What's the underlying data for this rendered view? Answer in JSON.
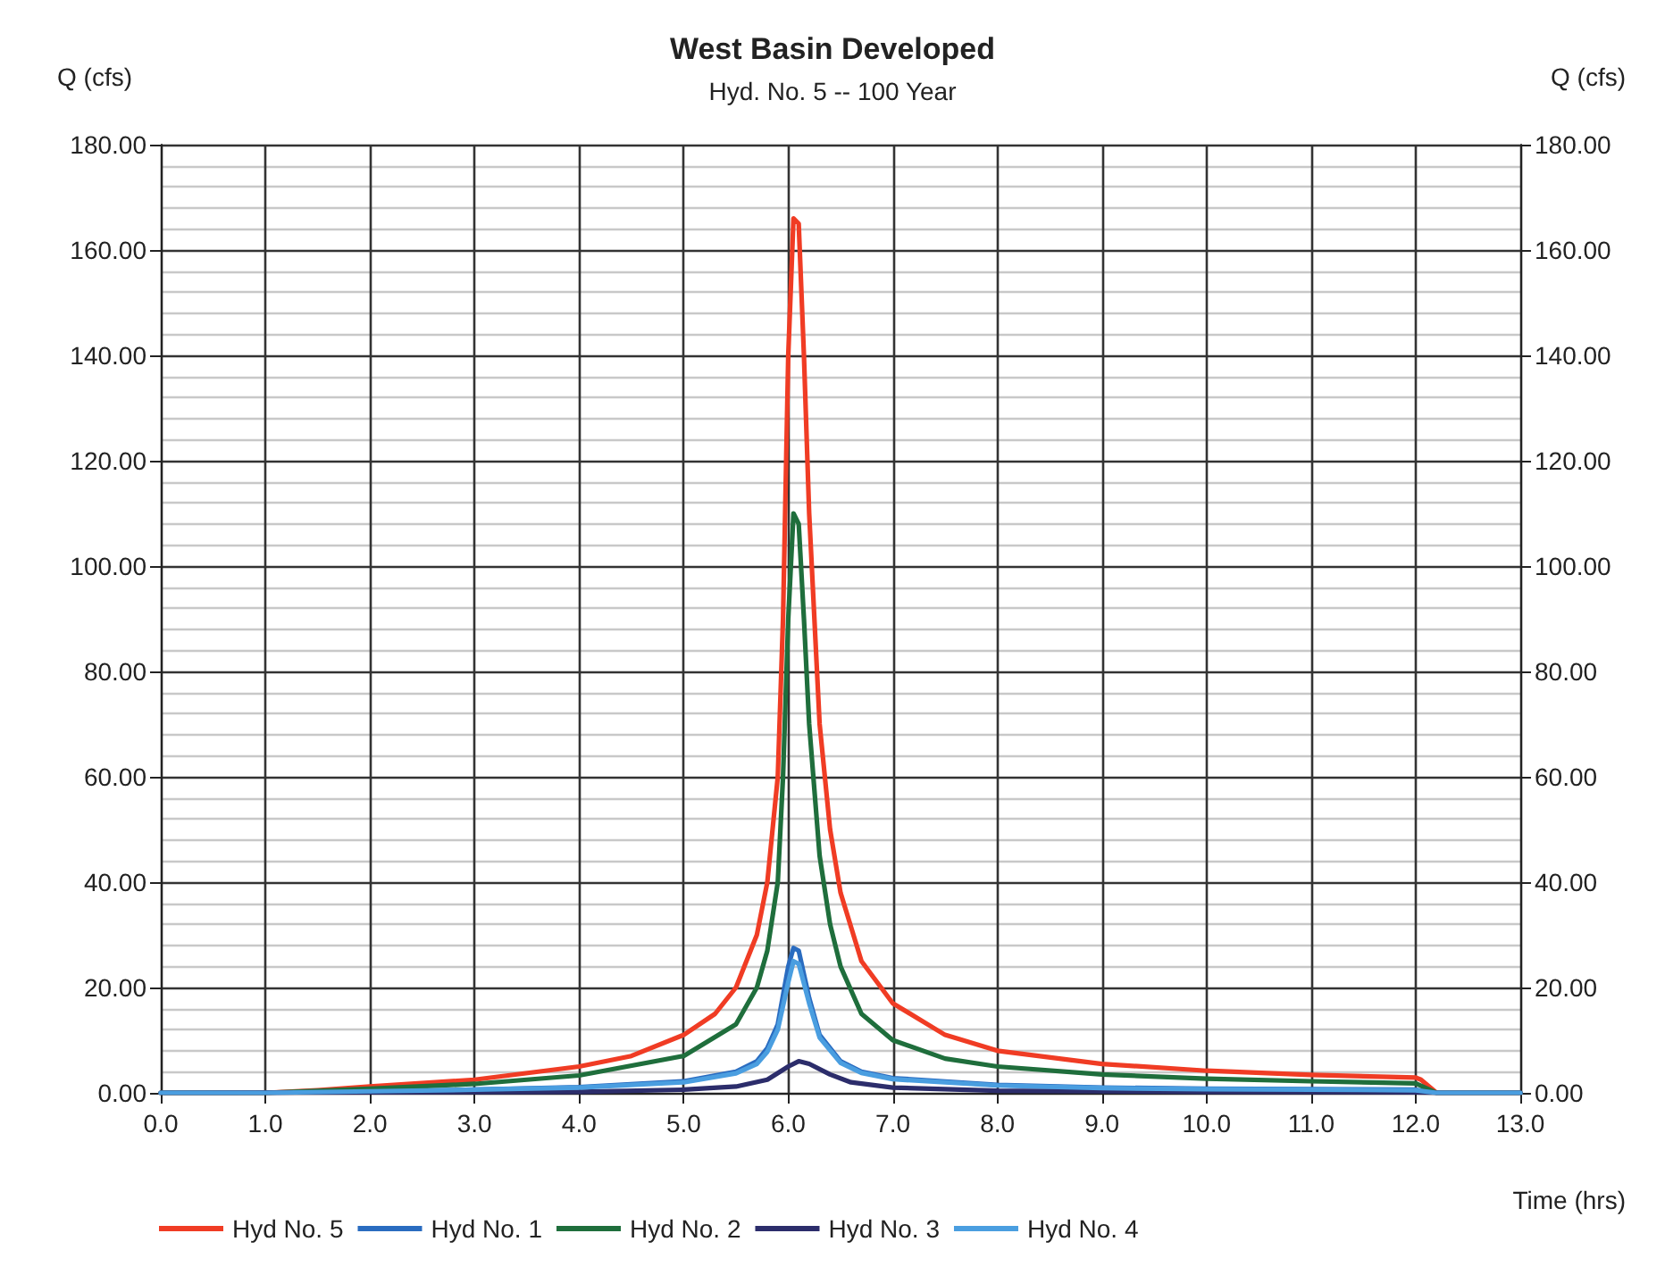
{
  "chart_data": {
    "type": "line",
    "title": "West Basin Developed",
    "subtitle": "Hyd. No. 5 -- 100 Year",
    "xlabel": "Time (hrs)",
    "ylabel": "Q (cfs)",
    "y2label": "Q (cfs)",
    "xlim": [
      0,
      13
    ],
    "xticks": [
      {
        "value": 0,
        "label": "0.0"
      },
      {
        "value": 1,
        "label": "1.0"
      },
      {
        "value": 2,
        "label": "2.0"
      },
      {
        "value": 3,
        "label": "3.0"
      },
      {
        "value": 4,
        "label": "4.0"
      },
      {
        "value": 5,
        "label": "5.0"
      },
      {
        "value": 6,
        "label": "6.0"
      },
      {
        "value": 7,
        "label": "7.0"
      },
      {
        "value": 8,
        "label": "8.0"
      },
      {
        "value": 9,
        "label": "9.0"
      },
      {
        "value": 10,
        "label": "10.0"
      },
      {
        "value": 11,
        "label": "11.0"
      },
      {
        "value": 12,
        "label": "12.0"
      },
      {
        "value": 13,
        "label": "13.0"
      }
    ],
    "ylim": [
      0,
      180
    ],
    "yticks": [
      {
        "value": 0,
        "label": "0.00"
      },
      {
        "value": 4,
        "label": null
      },
      {
        "value": 8,
        "label": null
      },
      {
        "value": 12,
        "label": null
      },
      {
        "value": 16,
        "label": null
      },
      {
        "value": 20,
        "label": "20.00"
      },
      {
        "value": 24,
        "label": null
      },
      {
        "value": 28,
        "label": null
      },
      {
        "value": 32,
        "label": null
      },
      {
        "value": 36,
        "label": null
      },
      {
        "value": 40,
        "label": "40.00"
      },
      {
        "value": 44,
        "label": null
      },
      {
        "value": 48,
        "label": null
      },
      {
        "value": 52,
        "label": null
      },
      {
        "value": 56,
        "label": null
      },
      {
        "value": 60,
        "label": "60.00"
      },
      {
        "value": 64,
        "label": null
      },
      {
        "value": 68,
        "label": null
      },
      {
        "value": 72,
        "label": null
      },
      {
        "value": 76,
        "label": null
      },
      {
        "value": 80,
        "label": "80.00"
      },
      {
        "value": 84,
        "label": null
      },
      {
        "value": 88,
        "label": null
      },
      {
        "value": 92,
        "label": null
      },
      {
        "value": 96,
        "label": null
      },
      {
        "value": 100,
        "label": "100.00"
      },
      {
        "value": 104,
        "label": null
      },
      {
        "value": 108,
        "label": null
      },
      {
        "value": 112,
        "label": null
      },
      {
        "value": 116,
        "label": null
      },
      {
        "value": 120,
        "label": "120.00"
      },
      {
        "value": 124,
        "label": null
      },
      {
        "value": 128,
        "label": null
      },
      {
        "value": 132,
        "label": null
      },
      {
        "value": 136,
        "label": null
      },
      {
        "value": 140,
        "label": "140.00"
      },
      {
        "value": 144,
        "label": null
      },
      {
        "value": 148,
        "label": null
      },
      {
        "value": 152,
        "label": null
      },
      {
        "value": 156,
        "label": null
      },
      {
        "value": 160,
        "label": "160.00"
      },
      {
        "value": 164,
        "label": null
      },
      {
        "value": 168,
        "label": null
      },
      {
        "value": 172,
        "label": null
      },
      {
        "value": 176,
        "label": null
      },
      {
        "value": 180,
        "label": "180.00"
      }
    ],
    "y2lim": [
      0,
      180
    ],
    "y2ticks": [
      {
        "value": 0,
        "label": "0.00"
      },
      {
        "value": 20,
        "label": "20.00"
      },
      {
        "value": 40,
        "label": "40.00"
      },
      {
        "value": 60,
        "label": "60.00"
      },
      {
        "value": 80,
        "label": "80.00"
      },
      {
        "value": 100,
        "label": "100.00"
      },
      {
        "value": 120,
        "label": "120.00"
      },
      {
        "value": 140,
        "label": "140.00"
      },
      {
        "value": 160,
        "label": "160.00"
      },
      {
        "value": 180,
        "label": "180.00"
      }
    ],
    "grid": true,
    "legend": "bottom",
    "marker": "none",
    "line_style": "solid",
    "series": [
      {
        "name": "Hyd No. 5",
        "color": "#f03c24",
        "x": [
          0,
          1,
          1.5,
          2,
          3,
          4,
          4.5,
          5,
          5.3,
          5.5,
          5.7,
          5.8,
          5.9,
          5.95,
          6,
          6.05,
          6.1,
          6.15,
          6.2,
          6.3,
          6.4,
          6.5,
          6.7,
          7,
          7.5,
          8,
          9,
          10,
          11,
          12,
          12.05,
          12.2,
          13
        ],
        "values": [
          0,
          0,
          0.5,
          1.2,
          2.5,
          5,
          7,
          11,
          15,
          20,
          30,
          40,
          60,
          90,
          140,
          166,
          165,
          140,
          110,
          70,
          50,
          38,
          25,
          17,
          11,
          8,
          5.5,
          4.2,
          3.4,
          2.9,
          2.5,
          0,
          0
        ]
      },
      {
        "name": "Hyd No. 1",
        "color": "#2a6cc0",
        "x": [
          0,
          1,
          2,
          3,
          4,
          5,
          5.5,
          5.7,
          5.8,
          5.9,
          6,
          6.05,
          6.1,
          6.2,
          6.3,
          6.5,
          6.7,
          7,
          8,
          9,
          10,
          11,
          12,
          12.2,
          13
        ],
        "values": [
          0,
          0,
          0.3,
          0.6,
          1.1,
          2.2,
          4,
          6,
          8.5,
          13,
          24,
          27.5,
          27,
          18,
          11,
          6,
          4,
          2.8,
          1.5,
          1,
          0.8,
          0.7,
          0.6,
          0,
          0
        ]
      },
      {
        "name": "Hyd No. 2",
        "color": "#1f6e3c",
        "x": [
          0,
          1,
          2,
          3,
          4,
          5,
          5.5,
          5.7,
          5.8,
          5.9,
          5.95,
          6,
          6.05,
          6.1,
          6.15,
          6.2,
          6.3,
          6.4,
          6.5,
          6.7,
          7,
          7.5,
          8,
          9,
          10,
          11,
          12,
          12.2,
          13
        ],
        "values": [
          0,
          0,
          0.8,
          1.7,
          3.3,
          7,
          13,
          20,
          27,
          40,
          60,
          90,
          110,
          108,
          90,
          70,
          45,
          32,
          24,
          15,
          10,
          6.5,
          5,
          3.5,
          2.7,
          2.2,
          1.8,
          0,
          0
        ]
      },
      {
        "name": "Hyd No. 3",
        "color": "#2c2d6b",
        "x": [
          0,
          4,
          5,
          5.5,
          5.8,
          6,
          6.1,
          6.2,
          6.4,
          6.6,
          7,
          8,
          10,
          12,
          12.2,
          13
        ],
        "values": [
          0,
          0.2,
          0.6,
          1.2,
          2.5,
          5,
          6,
          5.5,
          3.5,
          2,
          1,
          0.4,
          0.2,
          0.1,
          0,
          0
        ]
      },
      {
        "name": "Hyd No. 4",
        "color": "#4a9ee0",
        "x": [
          0,
          1,
          2,
          3,
          4,
          5,
          5.5,
          5.7,
          5.8,
          5.9,
          6,
          6.05,
          6.1,
          6.2,
          6.3,
          6.5,
          6.7,
          7,
          8,
          9,
          10,
          11,
          12,
          12.2,
          13
        ],
        "values": [
          0,
          0,
          0.3,
          0.6,
          1,
          2,
          3.7,
          5.5,
          7.8,
          12,
          21,
          25,
          24.5,
          17,
          10.5,
          5.7,
          3.8,
          2.6,
          1.4,
          0.9,
          0.7,
          0.6,
          0.5,
          0,
          0
        ]
      }
    ]
  }
}
